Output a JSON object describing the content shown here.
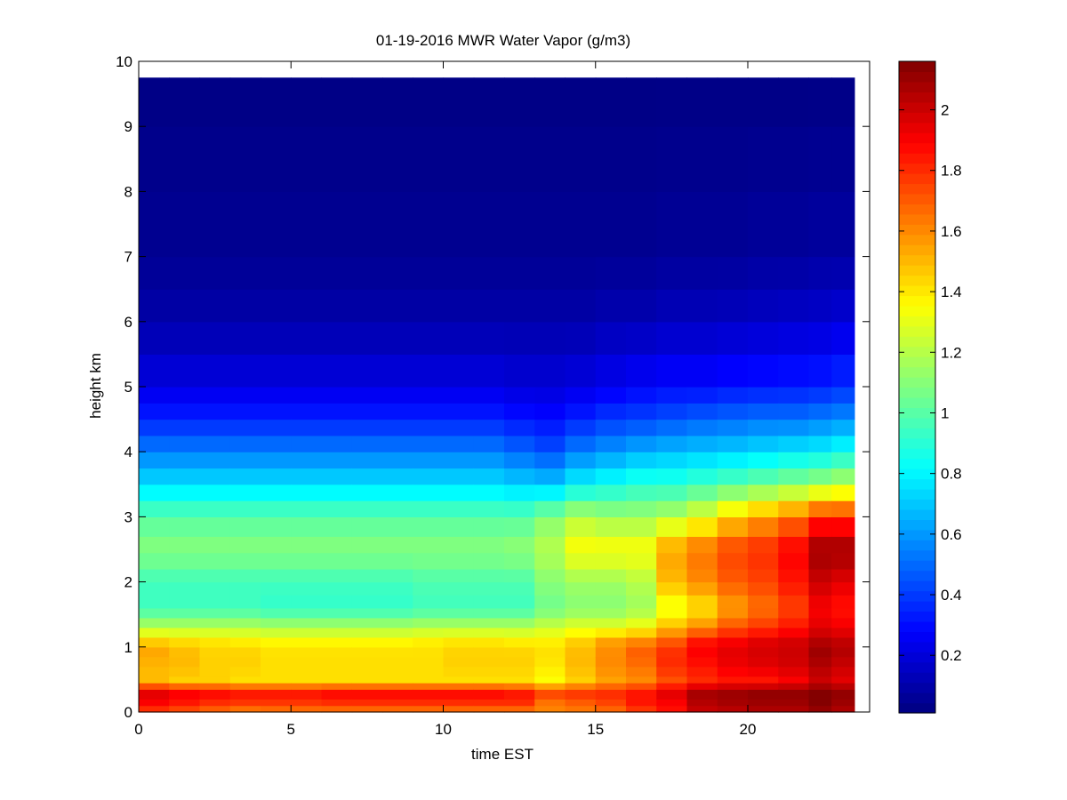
{
  "figure": {
    "title": "01-19-2016 MWR Water Vapor (g/m3)"
  },
  "chart_data": {
    "type": "heatmap",
    "title": "01-19-2016 MWR Water Vapor (g/m3)",
    "xlabel": "time EST",
    "ylabel": "height km",
    "xlim": [
      0,
      24
    ],
    "ylim": [
      0,
      10
    ],
    "x_ticks": [
      0,
      5,
      10,
      15,
      20
    ],
    "y_ticks": [
      0,
      1,
      2,
      3,
      4,
      5,
      6,
      7,
      8,
      9,
      10
    ],
    "colorbar": {
      "colormap": "jet",
      "min": 0.01,
      "max": 2.16,
      "ticks": [
        0.2,
        0.4,
        0.6,
        0.8,
        1,
        1.2,
        1.4,
        1.6,
        1.8,
        2
      ]
    },
    "x": [
      0.5,
      1.5,
      2.5,
      3.5,
      4.5,
      5.5,
      6.5,
      7.5,
      8.5,
      9.5,
      10.5,
      11.5,
      12.5,
      13.5,
      14.5,
      15.5,
      16.5,
      17.5,
      18.5,
      19.5,
      20.5,
      21.5,
      22.5,
      23.0
    ],
    "x_range": [
      0,
      23.5
    ],
    "y_levels": [
      0,
      0.1,
      0.2,
      0.35,
      0.45,
      0.55,
      0.7,
      0.85,
      1.0,
      1.15,
      1.3,
      1.45,
      1.6,
      1.8,
      2.0,
      2.2,
      2.45,
      2.7,
      3.0,
      3.25,
      3.5,
      3.75,
      4.0,
      4.25,
      4.5,
      4.75,
      5.0,
      5.5,
      6.0,
      6.5,
      7.0,
      8.0,
      9.0,
      9.75
    ],
    "z_anchor_heights": [
      0,
      0.15,
      0.3,
      0.5,
      0.7,
      0.9,
      1.1,
      1.3,
      1.6,
      2.0,
      2.5,
      3.0,
      3.5,
      4.0,
      4.5,
      5.0,
      6.0,
      7.0,
      9.75
    ],
    "z_profiles": [
      [
        1.75,
        1.9,
        1.95,
        1.5,
        1.5,
        1.55,
        1.45,
        1.2,
        0.95,
        0.95,
        1.1,
        1.0,
        0.75,
        0.55,
        0.35,
        0.22,
        0.1,
        0.05,
        0.02
      ],
      [
        1.7,
        1.85,
        1.9,
        1.45,
        1.5,
        1.5,
        1.42,
        1.2,
        0.95,
        0.95,
        1.1,
        1.0,
        0.75,
        0.55,
        0.35,
        0.22,
        0.1,
        0.05,
        0.02
      ],
      [
        1.65,
        1.8,
        1.88,
        1.45,
        1.45,
        1.45,
        1.4,
        1.2,
        0.95,
        0.95,
        1.1,
        1.0,
        0.75,
        0.55,
        0.35,
        0.22,
        0.1,
        0.05,
        0.02
      ],
      [
        1.6,
        1.78,
        1.85,
        1.42,
        1.45,
        1.45,
        1.38,
        1.2,
        0.95,
        0.95,
        1.1,
        1.0,
        0.75,
        0.55,
        0.35,
        0.22,
        0.1,
        0.05,
        0.02
      ],
      [
        1.62,
        1.78,
        1.85,
        1.42,
        1.42,
        1.42,
        1.36,
        1.18,
        0.92,
        0.95,
        1.1,
        1.0,
        0.75,
        0.55,
        0.35,
        0.22,
        0.1,
        0.05,
        0.02
      ],
      [
        1.62,
        1.78,
        1.85,
        1.42,
        1.42,
        1.42,
        1.36,
        1.18,
        0.92,
        0.95,
        1.1,
        1.0,
        0.75,
        0.55,
        0.35,
        0.22,
        0.1,
        0.05,
        0.02
      ],
      [
        1.62,
        1.8,
        1.88,
        1.42,
        1.42,
        1.42,
        1.36,
        1.18,
        0.92,
        0.95,
        1.1,
        1.0,
        0.75,
        0.55,
        0.35,
        0.22,
        0.1,
        0.05,
        0.02
      ],
      [
        1.62,
        1.8,
        1.88,
        1.42,
        1.42,
        1.42,
        1.36,
        1.18,
        0.92,
        0.95,
        1.1,
        1.0,
        0.75,
        0.55,
        0.35,
        0.22,
        0.1,
        0.05,
        0.02
      ],
      [
        1.62,
        1.8,
        1.88,
        1.42,
        1.42,
        1.42,
        1.36,
        1.18,
        0.92,
        0.95,
        1.1,
        1.0,
        0.75,
        0.55,
        0.35,
        0.22,
        0.1,
        0.05,
        0.02
      ],
      [
        1.62,
        1.8,
        1.88,
        1.42,
        1.42,
        1.42,
        1.38,
        1.2,
        0.95,
        0.98,
        1.1,
        1.0,
        0.75,
        0.55,
        0.35,
        0.22,
        0.1,
        0.05,
        0.02
      ],
      [
        1.62,
        1.8,
        1.88,
        1.42,
        1.45,
        1.45,
        1.4,
        1.2,
        0.95,
        0.98,
        1.1,
        1.0,
        0.75,
        0.55,
        0.35,
        0.22,
        0.1,
        0.05,
        0.02
      ],
      [
        1.62,
        1.8,
        1.88,
        1.42,
        1.45,
        1.45,
        1.4,
        1.2,
        0.95,
        0.98,
        1.1,
        1.0,
        0.75,
        0.55,
        0.35,
        0.22,
        0.1,
        0.05,
        0.02
      ],
      [
        1.62,
        1.8,
        1.85,
        1.42,
        1.45,
        1.45,
        1.38,
        1.2,
        0.95,
        0.98,
        1.12,
        1.0,
        0.72,
        0.5,
        0.32,
        0.2,
        0.1,
        0.05,
        0.02
      ],
      [
        1.6,
        1.65,
        1.75,
        1.35,
        1.4,
        1.42,
        1.38,
        1.25,
        1.05,
        1.1,
        1.2,
        1.1,
        0.7,
        0.45,
        0.3,
        0.2,
        0.1,
        0.05,
        0.02
      ],
      [
        1.62,
        1.7,
        1.78,
        1.45,
        1.5,
        1.5,
        1.45,
        1.3,
        1.1,
        1.15,
        1.35,
        1.2,
        0.8,
        0.55,
        0.35,
        0.22,
        0.1,
        0.05,
        0.02
      ],
      [
        1.65,
        1.75,
        1.8,
        1.55,
        1.6,
        1.6,
        1.55,
        1.3,
        1.1,
        1.15,
        1.35,
        1.15,
        0.85,
        0.6,
        0.4,
        0.25,
        0.12,
        0.05,
        0.02
      ],
      [
        1.75,
        1.85,
        1.85,
        1.6,
        1.65,
        1.7,
        1.6,
        1.35,
        1.15,
        1.2,
        1.35,
        1.15,
        0.9,
        0.65,
        0.42,
        0.28,
        0.12,
        0.05,
        0.02
      ],
      [
        1.85,
        1.9,
        1.95,
        1.72,
        1.8,
        1.8,
        1.7,
        1.5,
        1.3,
        1.5,
        1.55,
        1.2,
        0.9,
        0.68,
        0.45,
        0.3,
        0.14,
        0.06,
        0.02
      ],
      [
        2.0,
        2.05,
        2.08,
        1.8,
        1.85,
        1.9,
        1.85,
        1.6,
        1.4,
        1.6,
        1.65,
        1.3,
        0.95,
        0.7,
        0.48,
        0.3,
        0.14,
        0.06,
        0.02
      ],
      [
        2.02,
        2.08,
        2.1,
        1.85,
        1.92,
        1.95,
        1.9,
        1.72,
        1.55,
        1.7,
        1.75,
        1.45,
        1.0,
        0.72,
        0.5,
        0.32,
        0.15,
        0.06,
        0.02
      ],
      [
        2.05,
        2.1,
        2.12,
        1.85,
        1.95,
        1.98,
        1.95,
        1.78,
        1.65,
        1.75,
        1.8,
        1.55,
        1.05,
        0.75,
        0.52,
        0.33,
        0.16,
        0.07,
        0.02
      ],
      [
        2.05,
        2.1,
        2.12,
        1.9,
        1.98,
        2.0,
        1.98,
        1.85,
        1.75,
        1.85,
        1.9,
        1.65,
        1.1,
        0.78,
        0.52,
        0.34,
        0.17,
        0.07,
        0.02
      ],
      [
        2.1,
        2.15,
        2.15,
        2.0,
        2.05,
        2.1,
        2.05,
        1.95,
        1.9,
        2.0,
        2.1,
        1.8,
        1.15,
        0.8,
        0.55,
        0.35,
        0.18,
        0.08,
        0.02
      ],
      [
        2.05,
        2.1,
        2.12,
        1.95,
        2.0,
        2.05,
        2.02,
        1.92,
        1.85,
        1.95,
        2.1,
        1.8,
        1.2,
        0.85,
        0.58,
        0.38,
        0.2,
        0.08,
        0.02
      ]
    ],
    "grid": false
  }
}
